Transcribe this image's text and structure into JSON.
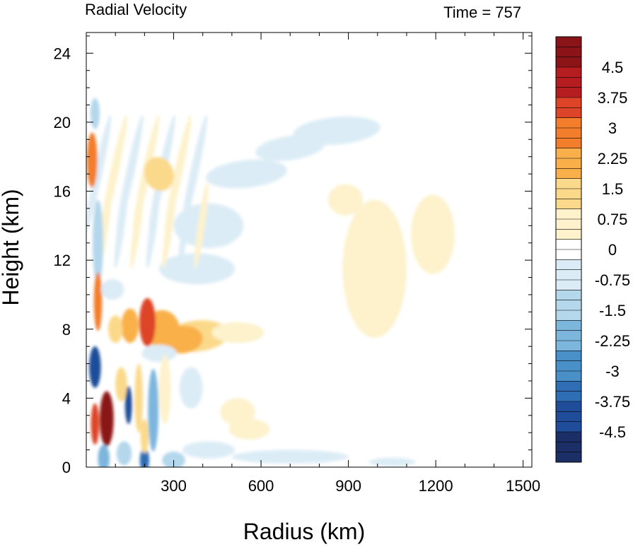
{
  "chart_data": {
    "type": "heatmap",
    "title": "Radial Velocity",
    "subtitle": "Time = 757",
    "xlabel": "Radius (km)",
    "ylabel": "Height (km)",
    "xlim": [
      0,
      1530
    ],
    "ylim": [
      0,
      25.2
    ],
    "x_ticks": [
      300,
      600,
      900,
      1200,
      1500
    ],
    "y_ticks": [
      0,
      4,
      8,
      12,
      16,
      20,
      24
    ],
    "grid": false,
    "colorbar": {
      "position": "right",
      "range": [
        -5.25,
        5.25
      ],
      "step": 0.25,
      "tick_labels": [
        "4.5",
        "3.75",
        "3",
        "2.25",
        "1.5",
        "0.75",
        "0",
        "-0.75",
        "-1.5",
        "-2.25",
        "-3",
        "-3.75",
        "-4.5"
      ],
      "tick_values": [
        4.5,
        3.75,
        3,
        2.25,
        1.5,
        0.75,
        0,
        -0.75,
        -1.5,
        -2.25,
        -3,
        -3.75,
        -4.5
      ],
      "colors_negative_to_positive": [
        "#1b2f66",
        "#1f4d9a",
        "#2f6db5",
        "#4a90c8",
        "#7db6dd",
        "#b4d7ec",
        "#dcecf6",
        "#ffffff",
        "#fdf2cc",
        "#fbd98a",
        "#f9b04a",
        "#f27d2a",
        "#dd4428",
        "#b51d21",
        "#8b1418"
      ]
    },
    "features": [
      {
        "x": 70,
        "y": 2.8,
        "value": 4.8
      },
      {
        "x": 30,
        "y": 5.8,
        "value": -4.3
      },
      {
        "x": 145,
        "y": 3.6,
        "value": -4.2
      },
      {
        "x": 210,
        "y": 8.3,
        "value": 3.8
      },
      {
        "x": 40,
        "y": 9.6,
        "value": 2.6
      },
      {
        "x": 330,
        "y": 7.4,
        "value": 2.4
      },
      {
        "x": 20,
        "y": 17.8,
        "value": 2.2
      },
      {
        "x": 200,
        "y": 0.4,
        "value": -3.4
      },
      {
        "x": 520,
        "y": 3.2,
        "value": 0.7
      },
      {
        "x": 250,
        "y": 17.0,
        "value": 0.8
      },
      {
        "x": 990,
        "y": 11.5,
        "value": 0.4
      },
      {
        "x": 1190,
        "y": 13.5,
        "value": 0.3
      },
      {
        "x": 860,
        "y": 19.5,
        "value": -0.6
      },
      {
        "x": 40,
        "y": 13.0,
        "value": -1.2
      }
    ]
  }
}
